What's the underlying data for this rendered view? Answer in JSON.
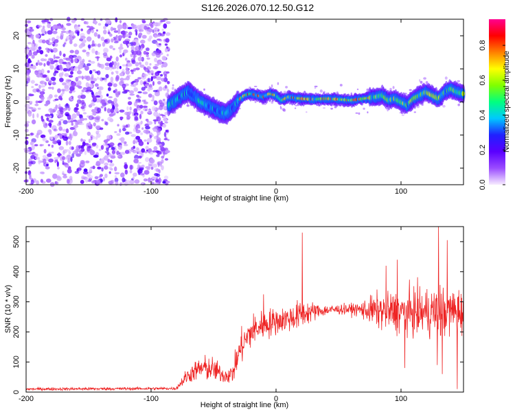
{
  "title": "S126.2026.070.12.50.G12",
  "chart_data": [
    {
      "type": "heatmap",
      "name": "spectrogram",
      "xlabel": "Height of straight line (km)",
      "ylabel": "Frequency (Hz)",
      "xlim": [
        -200,
        150
      ],
      "ylim": [
        -25,
        25
      ],
      "xticks": [
        -200,
        -100,
        0,
        100
      ],
      "yticks": [
        -20,
        -10,
        0,
        10,
        20
      ],
      "colorbar": {
        "label": "Normalized spectral amplitude",
        "range": [
          0.0,
          0.95
        ],
        "ticks": [
          0.0,
          0.2,
          0.4,
          0.6,
          0.8
        ],
        "tick_labels": [
          "0.0",
          "0.2",
          "0.4",
          "0.6",
          "0.8"
        ],
        "colors": [
          "#f7ecff",
          "#9a4cff",
          "#5a00ff",
          "#2020ff",
          "#00c8ff",
          "#00ff80",
          "#80ff00",
          "#ffff00",
          "#ff8000",
          "#ff0000",
          "#ff0090"
        ]
      },
      "noise_region_x": [
        -200,
        -86
      ],
      "ridge": [
        {
          "x": -86,
          "y": -1.0
        },
        {
          "x": -80,
          "y": 0.5
        },
        {
          "x": -75,
          "y": 2.0
        },
        {
          "x": -70,
          "y": 3.0
        },
        {
          "x": -65,
          "y": 1.5
        },
        {
          "x": -60,
          "y": 0.0
        },
        {
          "x": -55,
          "y": -1.0
        },
        {
          "x": -50,
          "y": -2.0
        },
        {
          "x": -45,
          "y": -3.0
        },
        {
          "x": -40,
          "y": -3.5
        },
        {
          "x": -35,
          "y": -2.0
        },
        {
          "x": -30,
          "y": 0.5
        },
        {
          "x": -25,
          "y": 2.0
        },
        {
          "x": -20,
          "y": 2.5
        },
        {
          "x": -15,
          "y": 2.0
        },
        {
          "x": -10,
          "y": 1.5
        },
        {
          "x": -5,
          "y": 2.5
        },
        {
          "x": 0,
          "y": 2.0
        },
        {
          "x": 5,
          "y": 0.5
        },
        {
          "x": 10,
          "y": 1.5
        },
        {
          "x": 20,
          "y": 1.0
        },
        {
          "x": 30,
          "y": 0.8
        },
        {
          "x": 40,
          "y": 1.0
        },
        {
          "x": 50,
          "y": 0.8
        },
        {
          "x": 60,
          "y": 0.5
        },
        {
          "x": 70,
          "y": 1.0
        },
        {
          "x": 80,
          "y": 1.5
        },
        {
          "x": 85,
          "y": 2.0
        },
        {
          "x": 90,
          "y": 0.5
        },
        {
          "x": 95,
          "y": 1.0
        },
        {
          "x": 100,
          "y": 0.0
        },
        {
          "x": 105,
          "y": -1.0
        },
        {
          "x": 110,
          "y": 1.0
        },
        {
          "x": 115,
          "y": 2.0
        },
        {
          "x": 120,
          "y": 3.0
        },
        {
          "x": 125,
          "y": 2.0
        },
        {
          "x": 130,
          "y": 1.0
        },
        {
          "x": 135,
          "y": 3.0
        },
        {
          "x": 140,
          "y": 4.0
        },
        {
          "x": 145,
          "y": 3.0
        },
        {
          "x": 150,
          "y": 2.5
        }
      ]
    },
    {
      "type": "line",
      "name": "snr",
      "xlabel": "Height of straight line (km)",
      "ylabel": "SNR (10 * v/v)",
      "xlim": [
        -200,
        150
      ],
      "ylim": [
        0,
        550
      ],
      "xticks": [
        -200,
        -100,
        0,
        100
      ],
      "yticks": [
        0,
        100,
        200,
        300,
        400,
        500
      ],
      "color": "#ee2222",
      "envelope": [
        {
          "x": -200,
          "mean": 10,
          "spread": 6
        },
        {
          "x": -80,
          "mean": 12,
          "spread": 6
        },
        {
          "x": -72,
          "mean": 50,
          "spread": 30
        },
        {
          "x": -65,
          "mean": 70,
          "spread": 40
        },
        {
          "x": -58,
          "mean": 80,
          "spread": 50
        },
        {
          "x": -50,
          "mean": 75,
          "spread": 50
        },
        {
          "x": -42,
          "mean": 55,
          "spread": 30
        },
        {
          "x": -35,
          "mean": 60,
          "spread": 40
        },
        {
          "x": -28,
          "mean": 150,
          "spread": 70
        },
        {
          "x": -20,
          "mean": 200,
          "spread": 70
        },
        {
          "x": -12,
          "mean": 220,
          "spread": 60
        },
        {
          "x": -5,
          "mean": 230,
          "spread": 60
        },
        {
          "x": 5,
          "mean": 240,
          "spread": 50
        },
        {
          "x": 15,
          "mean": 250,
          "spread": 60
        },
        {
          "x": 25,
          "mean": 265,
          "spread": 50
        },
        {
          "x": 35,
          "mean": 270,
          "spread": 25
        },
        {
          "x": 50,
          "mean": 275,
          "spread": 20
        },
        {
          "x": 65,
          "mean": 275,
          "spread": 25
        },
        {
          "x": 80,
          "mean": 270,
          "spread": 70
        },
        {
          "x": 100,
          "mean": 265,
          "spread": 90
        },
        {
          "x": 120,
          "mean": 265,
          "spread": 100
        },
        {
          "x": 135,
          "mean": 270,
          "spread": 110
        },
        {
          "x": 150,
          "mean": 270,
          "spread": 90
        }
      ],
      "peaks": [
        {
          "x": 21,
          "y": 530
        },
        {
          "x": 130,
          "y": 550
        },
        {
          "x": 137,
          "y": 505
        },
        {
          "x": 97,
          "y": 440
        },
        {
          "x": 88,
          "y": 420
        },
        {
          "x": -10,
          "y": 325
        }
      ],
      "troughs": [
        {
          "x": 145,
          "y": 10
        },
        {
          "x": 133,
          "y": 60
        },
        {
          "x": 103,
          "y": 80
        },
        {
          "x": 129,
          "y": 90
        }
      ]
    }
  ]
}
